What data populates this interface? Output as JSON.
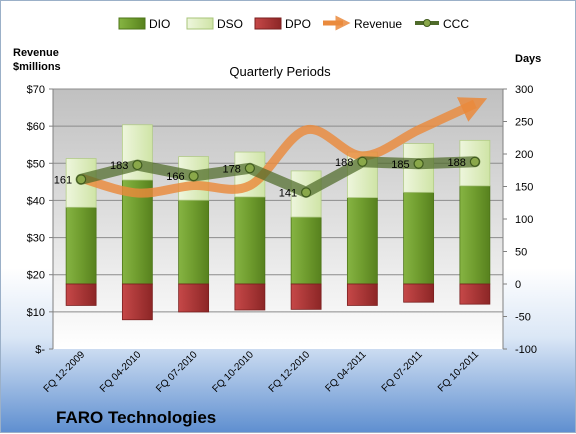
{
  "chart_data": {
    "type": "bar",
    "title": "Quarterly Periods",
    "footer_title": "FARO Technologies",
    "left_axis_label": [
      "Revenue",
      "$millions"
    ],
    "right_axis_label": "Days",
    "categories": [
      "FQ 12-2009",
      "FQ 04-2010",
      "FQ 07-2010",
      "FQ 10-2010",
      "FQ 12-2010",
      "FQ 04-2011",
      "FQ 07-2011",
      "FQ 10-2011"
    ],
    "left_axis": {
      "min": 0,
      "max": 70,
      "step": 10,
      "tick_labels": [
        "$-",
        "$10",
        "$20",
        "$30",
        "$40",
        "$50",
        "$60",
        "$70"
      ]
    },
    "right_axis": {
      "min": -100,
      "max": 300,
      "step": 50,
      "tick_labels": [
        "-100",
        "-50",
        "0",
        "50",
        "100",
        "150",
        "200",
        "250",
        "300"
      ]
    },
    "series": [
      {
        "name": "DIO",
        "axis": "right",
        "values": [
          118,
          160,
          129,
          134,
          103,
          133,
          141,
          151
        ],
        "color": "#6a9a2a"
      },
      {
        "name": "DSO",
        "axis": "right",
        "values": [
          75,
          85,
          67,
          69,
          71,
          70,
          75,
          70
        ],
        "color": "#dfeec3"
      },
      {
        "name": "DPO",
        "axis": "right",
        "values": [
          -33,
          -55,
          -43,
          -40,
          -39,
          -33,
          -28,
          -31
        ],
        "color": "#b23a3a"
      },
      {
        "name": "Revenue",
        "axis": "left",
        "values": [
          46,
          42,
          44,
          44,
          59,
          52,
          59,
          66
        ],
        "color": "#ea8a3c"
      },
      {
        "name": "CCC",
        "axis": "right",
        "values": [
          161,
          183,
          166,
          178,
          141,
          188,
          185,
          188
        ],
        "color": "#4f6b2a"
      }
    ],
    "data_labels": [
      "161",
      "183",
      "166",
      "178",
      "141",
      "188",
      "185",
      "188"
    ],
    "legend": {
      "position": "top",
      "entries": [
        "DIO",
        "DSO",
        "DPO",
        "Revenue",
        "CCC"
      ]
    },
    "grid": true
  }
}
